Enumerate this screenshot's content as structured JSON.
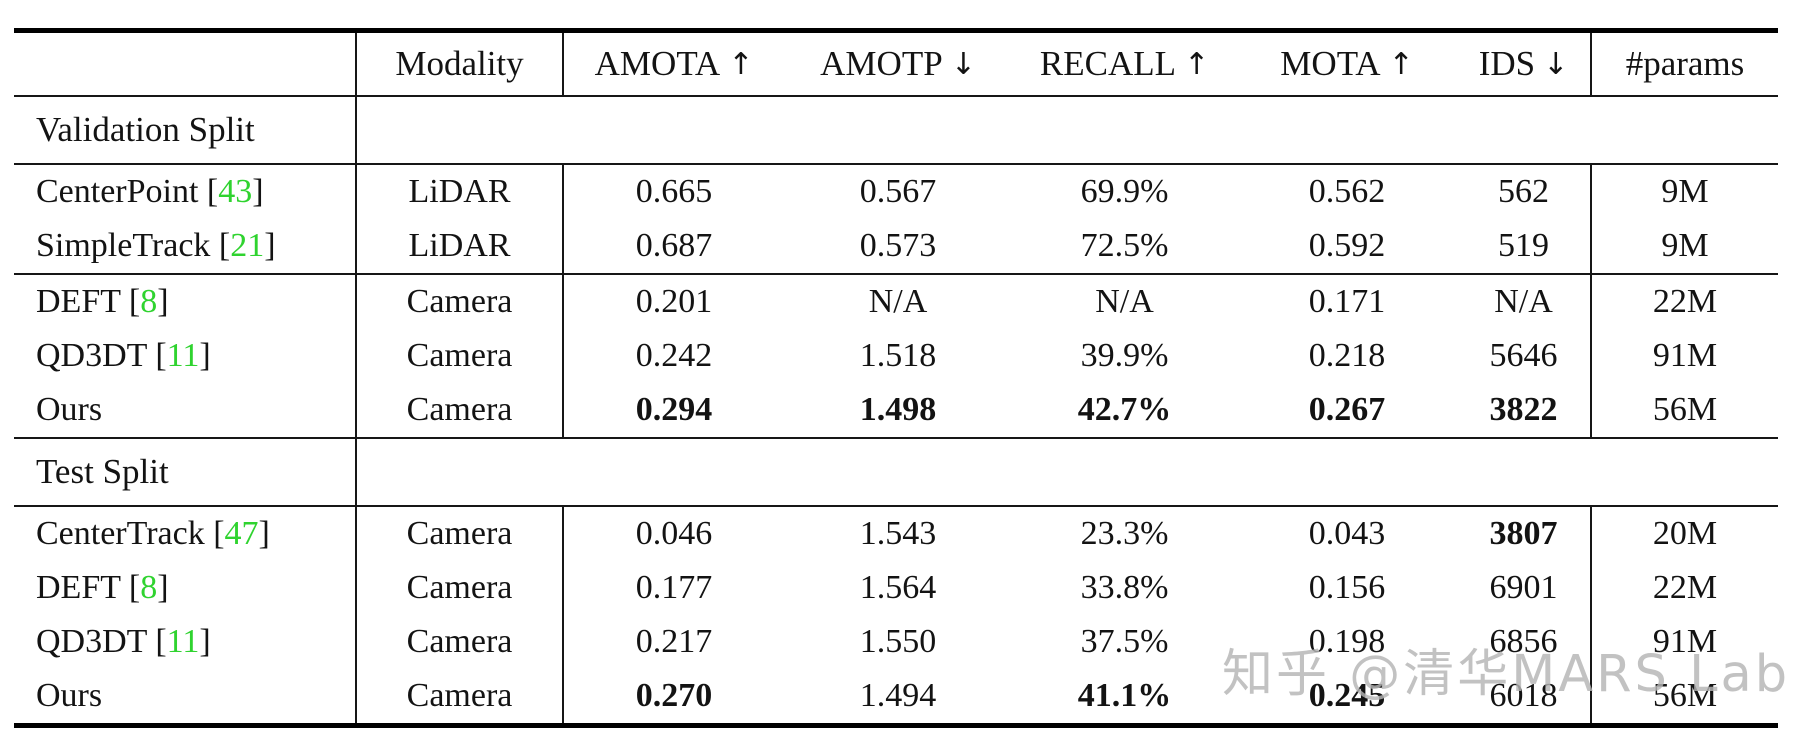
{
  "colors": {
    "citation_green": "#2fd32f",
    "text": "#131313",
    "rule": "#161616",
    "watermark_gray": "#b5b5b5"
  },
  "watermark": {
    "text": "知乎 @清华MARS Lab"
  },
  "table": {
    "columns": [
      {
        "label": "",
        "arrow": ""
      },
      {
        "label": "Modality",
        "arrow": ""
      },
      {
        "label": "AMOTA",
        "arrow": "↑"
      },
      {
        "label": "AMOTP",
        "arrow": "↓"
      },
      {
        "label": "RECALL",
        "arrow": "↑"
      },
      {
        "label": "MOTA",
        "arrow": "↑"
      },
      {
        "label": "IDS",
        "arrow": "↓"
      },
      {
        "label": "#params",
        "arrow": ""
      }
    ],
    "sections": [
      {
        "label": "Validation Split",
        "groups": [
          [
            {
              "method": "CenterPoint",
              "cite": "43",
              "modality": "LiDAR",
              "values": [
                "0.665",
                "0.567",
                "69.9%",
                "0.562",
                "562",
                "9M"
              ],
              "bold": [
                false,
                false,
                false,
                false,
                false,
                false
              ]
            },
            {
              "method": "SimpleTrack",
              "cite": "21",
              "modality": "LiDAR",
              "values": [
                "0.687",
                "0.573",
                "72.5%",
                "0.592",
                "519",
                "9M"
              ],
              "bold": [
                false,
                false,
                false,
                false,
                false,
                false
              ]
            }
          ],
          [
            {
              "method": "DEFT",
              "cite": "8",
              "modality": "Camera",
              "values": [
                "0.201",
                "N/A",
                "N/A",
                "0.171",
                "N/A",
                "22M"
              ],
              "bold": [
                false,
                false,
                false,
                false,
                false,
                false
              ]
            },
            {
              "method": "QD3DT",
              "cite": "11",
              "modality": "Camera",
              "values": [
                "0.242",
                "1.518",
                "39.9%",
                "0.218",
                "5646",
                "91M"
              ],
              "bold": [
                false,
                false,
                false,
                false,
                false,
                false
              ]
            },
            {
              "method": "Ours",
              "cite": "",
              "modality": "Camera",
              "values": [
                "0.294",
                "1.498",
                "42.7%",
                "0.267",
                "3822",
                "56M"
              ],
              "bold": [
                true,
                true,
                true,
                true,
                true,
                false
              ]
            }
          ]
        ]
      },
      {
        "label": "Test Split",
        "groups": [
          [
            {
              "method": "CenterTrack",
              "cite": "47",
              "modality": "Camera",
              "values": [
                "0.046",
                "1.543",
                "23.3%",
                "0.043",
                "3807",
                "20M"
              ],
              "bold": [
                false,
                false,
                false,
                false,
                true,
                false
              ]
            },
            {
              "method": "DEFT",
              "cite": "8",
              "modality": "Camera",
              "values": [
                "0.177",
                "1.564",
                "33.8%",
                "0.156",
                "6901",
                "22M"
              ],
              "bold": [
                false,
                false,
                false,
                false,
                false,
                false
              ]
            },
            {
              "method": "QD3DT",
              "cite": "11",
              "modality": "Camera",
              "values": [
                "0.217",
                "1.550",
                "37.5%",
                "0.198",
                "6856",
                "91M"
              ],
              "bold": [
                false,
                false,
                false,
                false,
                false,
                false
              ]
            },
            {
              "method": "Ours",
              "cite": "",
              "modality": "Camera",
              "values": [
                "0.270",
                "1.494",
                "41.1%",
                "0.245",
                "6018",
                "56M"
              ],
              "bold": [
                true,
                false,
                true,
                true,
                false,
                false
              ]
            }
          ]
        ]
      }
    ]
  }
}
